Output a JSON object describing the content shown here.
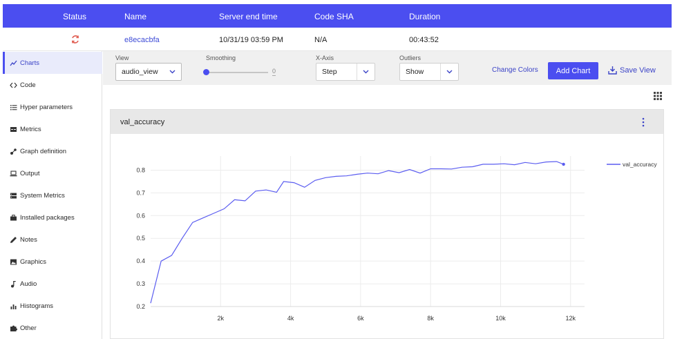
{
  "table": {
    "headers": {
      "status": "Status",
      "name": "Name",
      "server_end_time": "Server end time",
      "code_sha": "Code SHA",
      "duration": "Duration"
    },
    "row": {
      "name": "e8ecacbfa",
      "server_end_time": "10/31/19 03:59 PM",
      "code_sha": "N/A",
      "duration": "00:43:52",
      "status_icon": "sync-icon",
      "status_color": "#e05a4f"
    }
  },
  "sidebar": {
    "items": [
      {
        "label": "Charts",
        "icon": "line-chart-icon",
        "active": true
      },
      {
        "label": "Code",
        "icon": "code-icon"
      },
      {
        "label": "Hyper parameters",
        "icon": "list-icon"
      },
      {
        "label": "Metrics",
        "icon": "metrics-icon"
      },
      {
        "label": "Graph definition",
        "icon": "graph-icon"
      },
      {
        "label": "Output",
        "icon": "laptop-icon"
      },
      {
        "label": "System Metrics",
        "icon": "server-icon"
      },
      {
        "label": "Installed packages",
        "icon": "briefcase-icon"
      },
      {
        "label": "Notes",
        "icon": "pencil-icon"
      },
      {
        "label": "Graphics",
        "icon": "image-icon"
      },
      {
        "label": "Audio",
        "icon": "music-note-icon"
      },
      {
        "label": "Histograms",
        "icon": "bar-chart-icon"
      },
      {
        "label": "Other",
        "icon": "puzzle-icon"
      }
    ]
  },
  "toolbar": {
    "view_label": "View",
    "view_value": "audio_view",
    "smoothing_label": "Smoothing",
    "smoothing_value": "0",
    "xaxis_label": "X-Axis",
    "xaxis_value": "Step",
    "outliers_label": "Outliers",
    "outliers_value": "Show",
    "change_colors": "Change Colors",
    "add_chart": "Add Chart",
    "save_view": "Save View"
  },
  "colors": {
    "accent": "#4b4ef0",
    "series": "#5a5cf0"
  },
  "chart_card": {
    "title": "val_accuracy"
  },
  "chart_data": {
    "type": "line",
    "title": "",
    "xlabel": "",
    "ylabel": "",
    "xlim": [
      0,
      12400
    ],
    "ylim": [
      0.2,
      0.85
    ],
    "x_ticks": [
      2000,
      4000,
      6000,
      8000,
      10000,
      12000
    ],
    "x_tick_labels": [
      "2k",
      "4k",
      "6k",
      "8k",
      "10k",
      "12k"
    ],
    "y_ticks": [
      0.2,
      0.3,
      0.4,
      0.5,
      0.6,
      0.7,
      0.8
    ],
    "y_tick_labels": [
      "0.2",
      "0.3",
      "0.4",
      "0.5",
      "0.6",
      "0.7",
      "0.8"
    ],
    "grid": true,
    "legend": "top-right",
    "series": [
      {
        "name": "val_accuracy",
        "x": [
          0,
          300,
          600,
          900,
          1200,
          1500,
          1800,
          2100,
          2400,
          2700,
          3000,
          3300,
          3600,
          3800,
          4100,
          4400,
          4700,
          5000,
          5300,
          5600,
          5900,
          6200,
          6500,
          6800,
          7100,
          7400,
          7700,
          8000,
          8300,
          8600,
          8900,
          9200,
          9500,
          9800,
          10100,
          10400,
          10700,
          11000,
          11300,
          11600,
          11800
        ],
        "y": [
          0.215,
          0.4,
          0.425,
          0.5,
          0.57,
          0.59,
          0.61,
          0.63,
          0.67,
          0.665,
          0.708,
          0.713,
          0.703,
          0.75,
          0.745,
          0.725,
          0.755,
          0.767,
          0.773,
          0.775,
          0.782,
          0.787,
          0.784,
          0.798,
          0.789,
          0.803,
          0.787,
          0.806,
          0.806,
          0.805,
          0.813,
          0.815,
          0.826,
          0.826,
          0.828,
          0.824,
          0.834,
          0.828,
          0.836,
          0.838,
          0.826
        ]
      }
    ]
  }
}
